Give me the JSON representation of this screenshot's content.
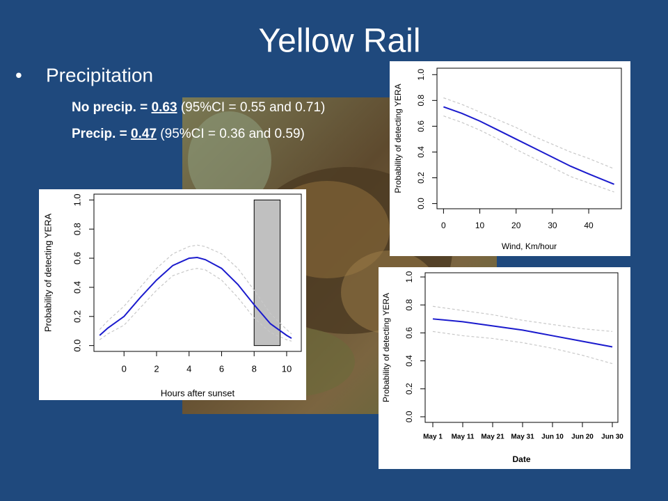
{
  "title": "Yellow Rail",
  "bullet": "Precipitation",
  "lines": [
    {
      "label": "No precip. =",
      "value": "0.63",
      "ci": "(95%CI = 0.55 and 0.71)"
    },
    {
      "label": "Precip. =",
      "value": "0.47",
      "ci": "(95%CI = 0.36 and 0.59)"
    }
  ],
  "chart_data": [
    {
      "type": "line",
      "xlabel": "Wind, Km/hour",
      "ylabel": "Probability of detecting YERA",
      "x": [
        0,
        5,
        10,
        15,
        20,
        25,
        30,
        35,
        40,
        47
      ],
      "series": [
        {
          "color": "#1a1acd",
          "dashed": false,
          "values": [
            0.75,
            0.7,
            0.64,
            0.57,
            0.5,
            0.43,
            0.36,
            0.29,
            0.23,
            0.15
          ]
        },
        {
          "color": "#c8c8c8",
          "dashed": true,
          "values": [
            0.82,
            0.77,
            0.71,
            0.65,
            0.59,
            0.52,
            0.46,
            0.4,
            0.35,
            0.27
          ]
        },
        {
          "color": "#c8c8c8",
          "dashed": true,
          "values": [
            0.68,
            0.63,
            0.57,
            0.5,
            0.42,
            0.35,
            0.28,
            0.21,
            0.16,
            0.09
          ]
        }
      ],
      "xlim": [
        -1.8,
        49
      ],
      "xticks": [
        0,
        10,
        20,
        30,
        40
      ],
      "ylim": [
        -0.04,
        1.05
      ],
      "yticks": [
        {
          "value": 0,
          "label": "0.0"
        },
        {
          "value": 0.2,
          "label": "0.2"
        },
        {
          "value": 0.4,
          "label": "0.4"
        },
        {
          "value": 0.6,
          "label": "0.6"
        },
        {
          "value": 0.8,
          "label": "0.8"
        },
        {
          "value": 1,
          "label": "1.0"
        }
      ]
    },
    {
      "type": "line",
      "xlabel": "Hours after sunset",
      "ylabel": "Probability of detecting YERA",
      "x": [
        -1.5,
        -1,
        0,
        1,
        2,
        3,
        4,
        4.5,
        5,
        6,
        7,
        8,
        9,
        10,
        10.3
      ],
      "series": [
        {
          "color": "#1a1acd",
          "dashed": false,
          "values": [
            0.07,
            0.12,
            0.2,
            0.33,
            0.45,
            0.55,
            0.6,
            0.605,
            0.59,
            0.53,
            0.42,
            0.28,
            0.15,
            0.07,
            0.05
          ]
        },
        {
          "color": "#c8c8c8",
          "dashed": true,
          "values": [
            0.11,
            0.17,
            0.27,
            0.4,
            0.53,
            0.63,
            0.68,
            0.69,
            0.68,
            0.63,
            0.53,
            0.38,
            0.22,
            0.11,
            0.08
          ]
        },
        {
          "color": "#c8c8c8",
          "dashed": true,
          "values": [
            0.04,
            0.08,
            0.14,
            0.26,
            0.38,
            0.48,
            0.52,
            0.53,
            0.52,
            0.45,
            0.33,
            0.19,
            0.09,
            0.04,
            0.03
          ]
        }
      ],
      "shaded_region": {
        "x": [
          8,
          9.6
        ],
        "y": [
          0,
          1
        ],
        "color": "#c0c0c0"
      },
      "xlim": [
        -1.85,
        10.9
      ],
      "xticks": [
        0,
        2,
        4,
        6,
        8,
        10
      ],
      "ylim": [
        -0.04,
        1.04
      ],
      "yticks": [
        {
          "value": 0,
          "label": "0.0"
        },
        {
          "value": 0.2,
          "label": "0.2"
        },
        {
          "value": 0.4,
          "label": "0.4"
        },
        {
          "value": 0.6,
          "label": "0.6"
        },
        {
          "value": 0.8,
          "label": "0.8"
        },
        {
          "value": 1,
          "label": "1.0"
        }
      ]
    },
    {
      "type": "line",
      "xlabel": "Date",
      "ylabel": "Probability of detecting YERA",
      "categories": [
        "May 1",
        "May 11",
        "May 21",
        "May 31",
        "Jun 10",
        "Jun 20",
        "Jun 30"
      ],
      "series": [
        {
          "color": "#1a1acd",
          "dashed": false,
          "values": [
            0.7,
            0.68,
            0.65,
            0.62,
            0.58,
            0.54,
            0.5
          ]
        },
        {
          "color": "#c8c8c8",
          "dashed": true,
          "values": [
            0.79,
            0.76,
            0.73,
            0.69,
            0.66,
            0.63,
            0.61
          ]
        },
        {
          "color": "#c8c8c8",
          "dashed": true,
          "values": [
            0.61,
            0.58,
            0.56,
            0.53,
            0.49,
            0.44,
            0.38
          ]
        }
      ],
      "ylim": [
        -0.04,
        1.03
      ],
      "yticks": [
        {
          "value": 0,
          "label": "0.0"
        },
        {
          "value": 0.2,
          "label": "0.2"
        },
        {
          "value": 0.4,
          "label": "0.4"
        },
        {
          "value": 0.6,
          "label": "0.6"
        },
        {
          "value": 0.8,
          "label": "0.8"
        },
        {
          "value": 1,
          "label": "1.0"
        }
      ]
    }
  ]
}
